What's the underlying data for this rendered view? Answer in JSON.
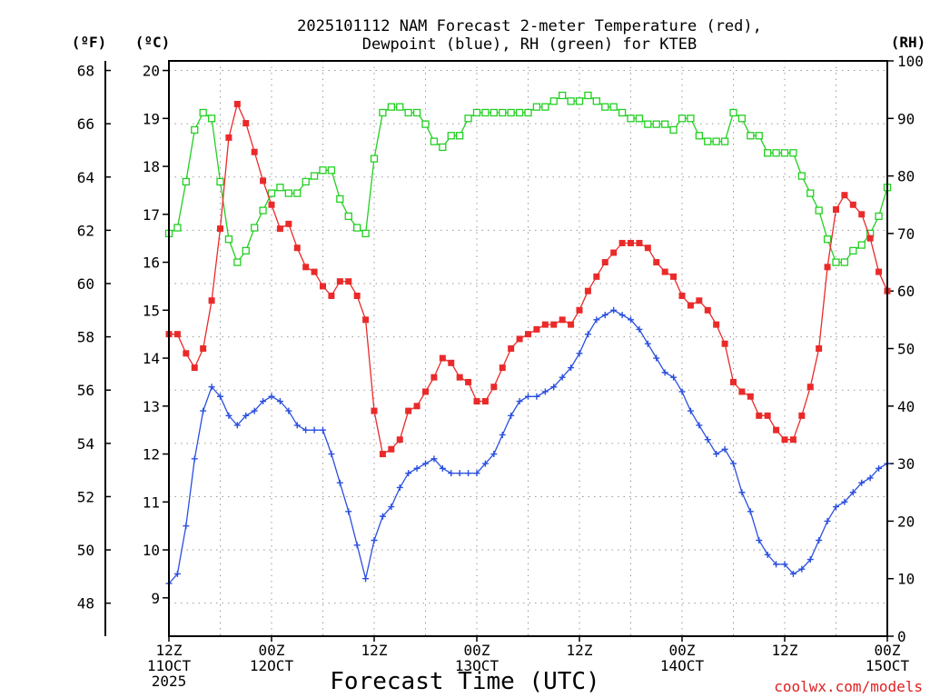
{
  "chart_data": {
    "type": "line",
    "title_lines": [
      "2025101112 NAM Forecast 2-meter Temperature (red),",
      "Dewpoint (blue), RH (green) for KTEB"
    ],
    "xlabel": "Forecast Time (UTC)",
    "credit": "coolwx.com/models",
    "units": {
      "fahrenheit": "(ºF)",
      "celsius": "(ºC)",
      "rh": "(RH)"
    },
    "x_range_hours": [
      0,
      84
    ],
    "celsius_range": [
      8.2,
      20.2
    ],
    "rh_range": [
      0,
      100
    ],
    "fahrenheit_ticks": [
      "48",
      "50",
      "52",
      "54",
      "56",
      "58",
      "60",
      "62",
      "64",
      "66",
      "68"
    ],
    "celsius_ticks": [
      "9",
      "10",
      "11",
      "12",
      "13",
      "14",
      "15",
      "16",
      "17",
      "18",
      "19",
      "20"
    ],
    "rh_ticks": [
      "0",
      "10",
      "20",
      "30",
      "40",
      "50",
      "60",
      "70",
      "80",
      "90",
      "100"
    ],
    "x_ticks": [
      {
        "hour": 0,
        "lines": [
          "12Z",
          "11OCT",
          "2025"
        ]
      },
      {
        "hour": 12,
        "lines": [
          "00Z",
          "12OCT"
        ]
      },
      {
        "hour": 24,
        "lines": [
          "12Z"
        ]
      },
      {
        "hour": 36,
        "lines": [
          "00Z",
          "13OCT"
        ]
      },
      {
        "hour": 48,
        "lines": [
          "12Z"
        ]
      },
      {
        "hour": 60,
        "lines": [
          "00Z",
          "14OCT"
        ]
      },
      {
        "hour": 72,
        "lines": [
          "12Z"
        ]
      },
      {
        "hour": 84,
        "lines": [
          "00Z",
          "15OCT"
        ]
      }
    ],
    "series": [
      {
        "key": "temperature",
        "color": "#ea2a2a",
        "marker": "filled-square",
        "unit": "C",
        "values": [
          14.5,
          14.5,
          14.1,
          13.8,
          14.2,
          15.2,
          16.7,
          18.6,
          19.3,
          18.9,
          18.3,
          17.7,
          17.2,
          16.7,
          16.8,
          16.3,
          15.9,
          15.8,
          15.5,
          15.3,
          15.6,
          15.6,
          15.3,
          14.8,
          12.9,
          12.0,
          12.1,
          12.3,
          12.9,
          13.0,
          13.3,
          13.6,
          14.0,
          13.9,
          13.6,
          13.5,
          13.1,
          13.1,
          13.4,
          13.8,
          14.2,
          14.4,
          14.5,
          14.6,
          14.7,
          14.7,
          14.8,
          14.7,
          15.0,
          15.4,
          15.7,
          16.0,
          16.2,
          16.4,
          16.4,
          16.4,
          16.3,
          16.0,
          15.8,
          15.7,
          15.3,
          15.1,
          15.2,
          15.0,
          14.7,
          14.3,
          13.5,
          13.3,
          13.2,
          12.8,
          12.8,
          12.5,
          12.3,
          12.3,
          12.8,
          13.4,
          14.2,
          15.9,
          17.1,
          17.4,
          17.2,
          17.0,
          16.5,
          15.8,
          15.4
        ]
      },
      {
        "key": "dewpoint",
        "color": "#2a4fe0",
        "marker": "plus",
        "unit": "C",
        "values": [
          9.3,
          9.5,
          10.5,
          11.9,
          12.9,
          13.4,
          13.2,
          12.8,
          12.6,
          12.8,
          12.9,
          13.1,
          13.2,
          13.1,
          12.9,
          12.6,
          12.5,
          12.5,
          12.5,
          12.0,
          11.4,
          10.8,
          10.1,
          9.4,
          10.2,
          10.7,
          10.9,
          11.3,
          11.6,
          11.7,
          11.8,
          11.9,
          11.7,
          11.6,
          11.6,
          11.6,
          11.6,
          11.8,
          12.0,
          12.4,
          12.8,
          13.1,
          13.2,
          13.2,
          13.3,
          13.4,
          13.6,
          13.8,
          14.1,
          14.5,
          14.8,
          14.9,
          15.0,
          14.9,
          14.8,
          14.6,
          14.3,
          14.0,
          13.7,
          13.6,
          13.3,
          12.9,
          12.6,
          12.3,
          12.0,
          12.1,
          11.8,
          11.2,
          10.8,
          10.2,
          9.9,
          9.7,
          9.7,
          9.5,
          9.6,
          9.8,
          10.2,
          10.6,
          10.9,
          11.0,
          11.2,
          11.4,
          11.5,
          11.7,
          11.8
        ]
      },
      {
        "key": "rh",
        "color": "#22d022",
        "marker": "open-square",
        "unit": "RH",
        "values": [
          70,
          71,
          79,
          88,
          91,
          90,
          79,
          69,
          65,
          67,
          71,
          74,
          77,
          78,
          77,
          77,
          79,
          80,
          81,
          81,
          76,
          73,
          71,
          70,
          83,
          91,
          92,
          92,
          91,
          91,
          89,
          86,
          85,
          87,
          87,
          90,
          91,
          91,
          91,
          91,
          91,
          91,
          91,
          92,
          92,
          93,
          94,
          93,
          93,
          94,
          93,
          92,
          92,
          91,
          90,
          90,
          89,
          89,
          89,
          88,
          90,
          90,
          87,
          86,
          86,
          86,
          91,
          90,
          87,
          87,
          84,
          84,
          84,
          84,
          80,
          77,
          74,
          69,
          65,
          65,
          67,
          68,
          70,
          73,
          78
        ]
      }
    ]
  }
}
